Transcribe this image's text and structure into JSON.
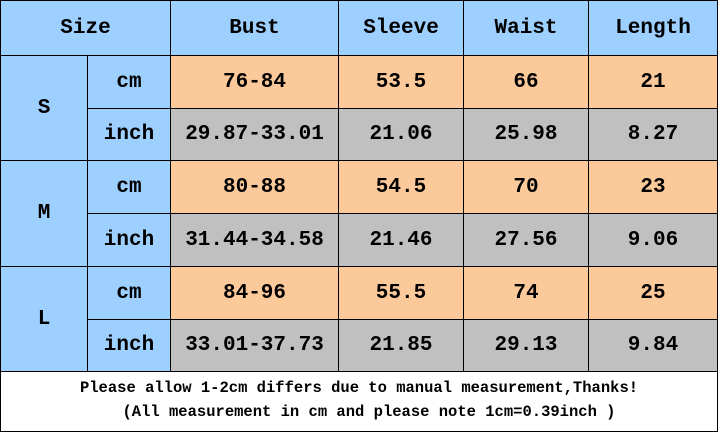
{
  "header": [
    "Size",
    "Bust",
    "Sleeve",
    "Waist",
    "Length"
  ],
  "groups": [
    {
      "size": "S",
      "rows": [
        {
          "unit": "cm",
          "values": [
            "76-84",
            "53.5",
            "66",
            "21"
          ]
        },
        {
          "unit": "inch",
          "values": [
            "29.87-33.01",
            "21.06",
            "25.98",
            "8.27"
          ]
        }
      ]
    },
    {
      "size": "M",
      "rows": [
        {
          "unit": "cm",
          "values": [
            "80-88",
            "54.5",
            "70",
            "23"
          ]
        },
        {
          "unit": "inch",
          "values": [
            "31.44-34.58",
            "21.46",
            "27.56",
            "9.06"
          ]
        }
      ]
    },
    {
      "size": "L",
      "rows": [
        {
          "unit": "cm",
          "values": [
            "84-96",
            "55.5",
            "74",
            "25"
          ]
        },
        {
          "unit": "inch",
          "values": [
            "33.01-37.73",
            "21.85",
            "29.13",
            "9.84"
          ]
        }
      ]
    }
  ],
  "note": [
    "Please allow 1-2cm differs due to manual measurement,Thanks!",
    "(All measurement in cm and please note 1cm=0.39inch )"
  ]
}
